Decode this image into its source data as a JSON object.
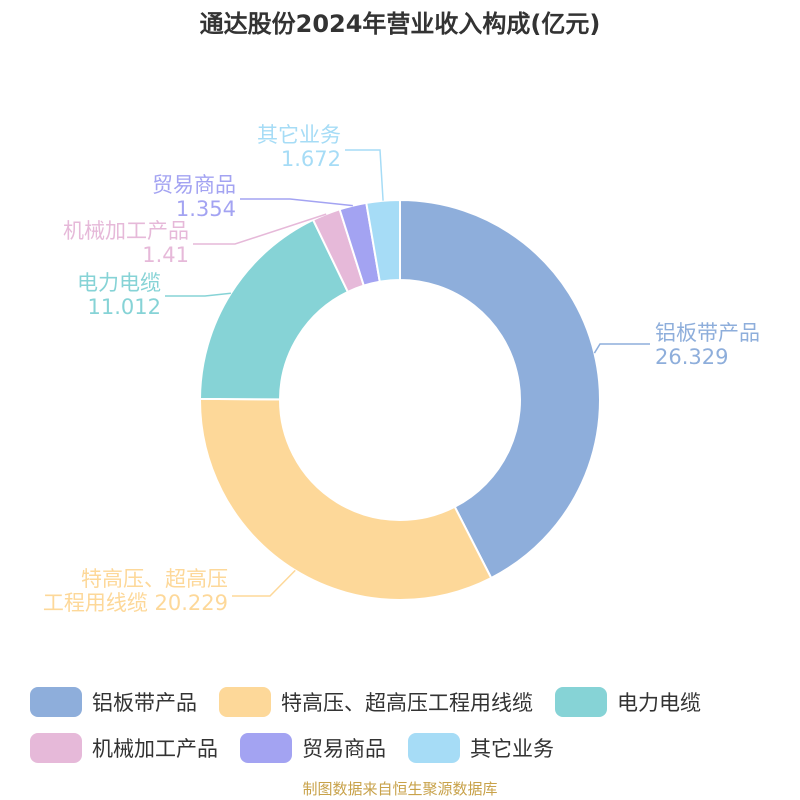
{
  "title": "通达股份2024年营业收入构成(亿元)",
  "source": "制图数据来自恒生聚源数据库",
  "chart_data": {
    "type": "pie",
    "donut": true,
    "legend_position": "bottom",
    "series": [
      {
        "name": "铝板带产品",
        "value": 26.329,
        "value_label": "26.329",
        "color": "#8eaedb"
      },
      {
        "name": "特高压、超高压工程用线缆",
        "value": 20.229,
        "value_label": "20.229",
        "color": "#fdd899"
      },
      {
        "name": "电力电缆",
        "value": 11.012,
        "value_label": "11.012",
        "color": "#86d3d6"
      },
      {
        "name": "机械加工产品",
        "value": 1.41,
        "value_label": "1.41",
        "color": "#e6b9d9"
      },
      {
        "name": "贸易商品",
        "value": 1.354,
        "value_label": "1.354",
        "color": "#a3a3f2"
      },
      {
        "name": "其它业务",
        "value": 1.672,
        "value_label": "1.672",
        "color": "#a6dcf6"
      }
    ]
  }
}
